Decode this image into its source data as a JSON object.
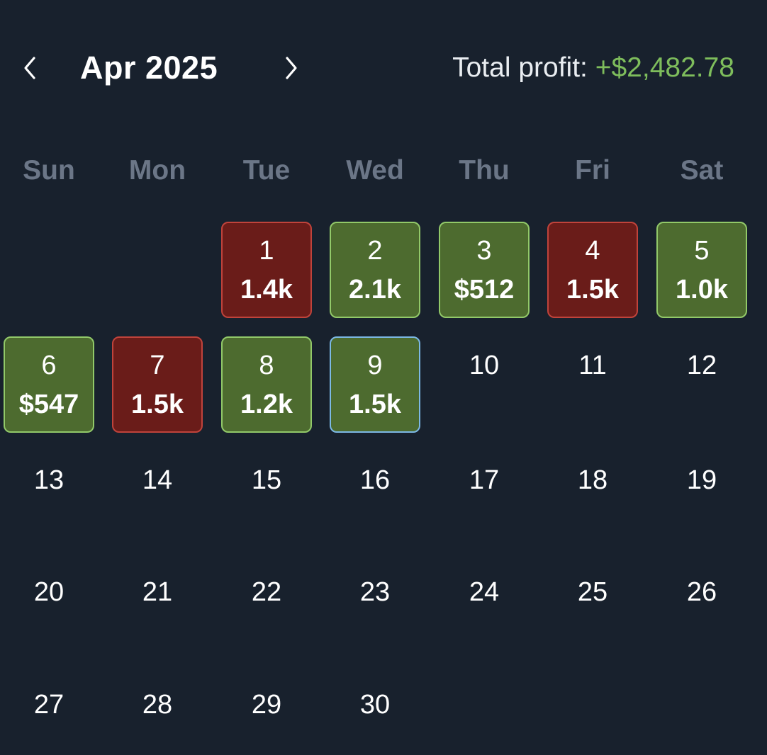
{
  "header": {
    "month_label": "Apr 2025",
    "total_label": "Total profit:",
    "total_value": "+$2,482.78",
    "prev_icon": "chevron-left-icon",
    "next_icon": "chevron-right-icon"
  },
  "weekdays": [
    "Sun",
    "Mon",
    "Tue",
    "Wed",
    "Thu",
    "Fri",
    "Sat"
  ],
  "colors": {
    "background": "#18212d",
    "profit_fill": "#4d6b2f",
    "profit_border": "#92c969",
    "loss_fill": "#6a1c19",
    "loss_border": "#c0433b",
    "today_border": "#7cb8e4",
    "total_value": "#7ebd5c",
    "weekday_text": "#6b7687"
  },
  "calendar": {
    "first_weekday_index": 2,
    "days_in_month": 30,
    "today": 9,
    "days": [
      {
        "day": "1",
        "amount": "1.4k",
        "status": "loss"
      },
      {
        "day": "2",
        "amount": "2.1k",
        "status": "profit"
      },
      {
        "day": "3",
        "amount": "$512",
        "status": "profit"
      },
      {
        "day": "4",
        "amount": "1.5k",
        "status": "loss"
      },
      {
        "day": "5",
        "amount": "1.0k",
        "status": "profit"
      },
      {
        "day": "6",
        "amount": "$547",
        "status": "profit"
      },
      {
        "day": "7",
        "amount": "1.5k",
        "status": "loss"
      },
      {
        "day": "8",
        "amount": "1.2k",
        "status": "profit"
      },
      {
        "day": "9",
        "amount": "1.5k",
        "status": "profit"
      },
      {
        "day": "10"
      },
      {
        "day": "11"
      },
      {
        "day": "12"
      },
      {
        "day": "13"
      },
      {
        "day": "14"
      },
      {
        "day": "15"
      },
      {
        "day": "16"
      },
      {
        "day": "17"
      },
      {
        "day": "18"
      },
      {
        "day": "19"
      },
      {
        "day": "20"
      },
      {
        "day": "21"
      },
      {
        "day": "22"
      },
      {
        "day": "23"
      },
      {
        "day": "24"
      },
      {
        "day": "25"
      },
      {
        "day": "26"
      },
      {
        "day": "27"
      },
      {
        "day": "28"
      },
      {
        "day": "29"
      },
      {
        "day": "30"
      }
    ]
  }
}
